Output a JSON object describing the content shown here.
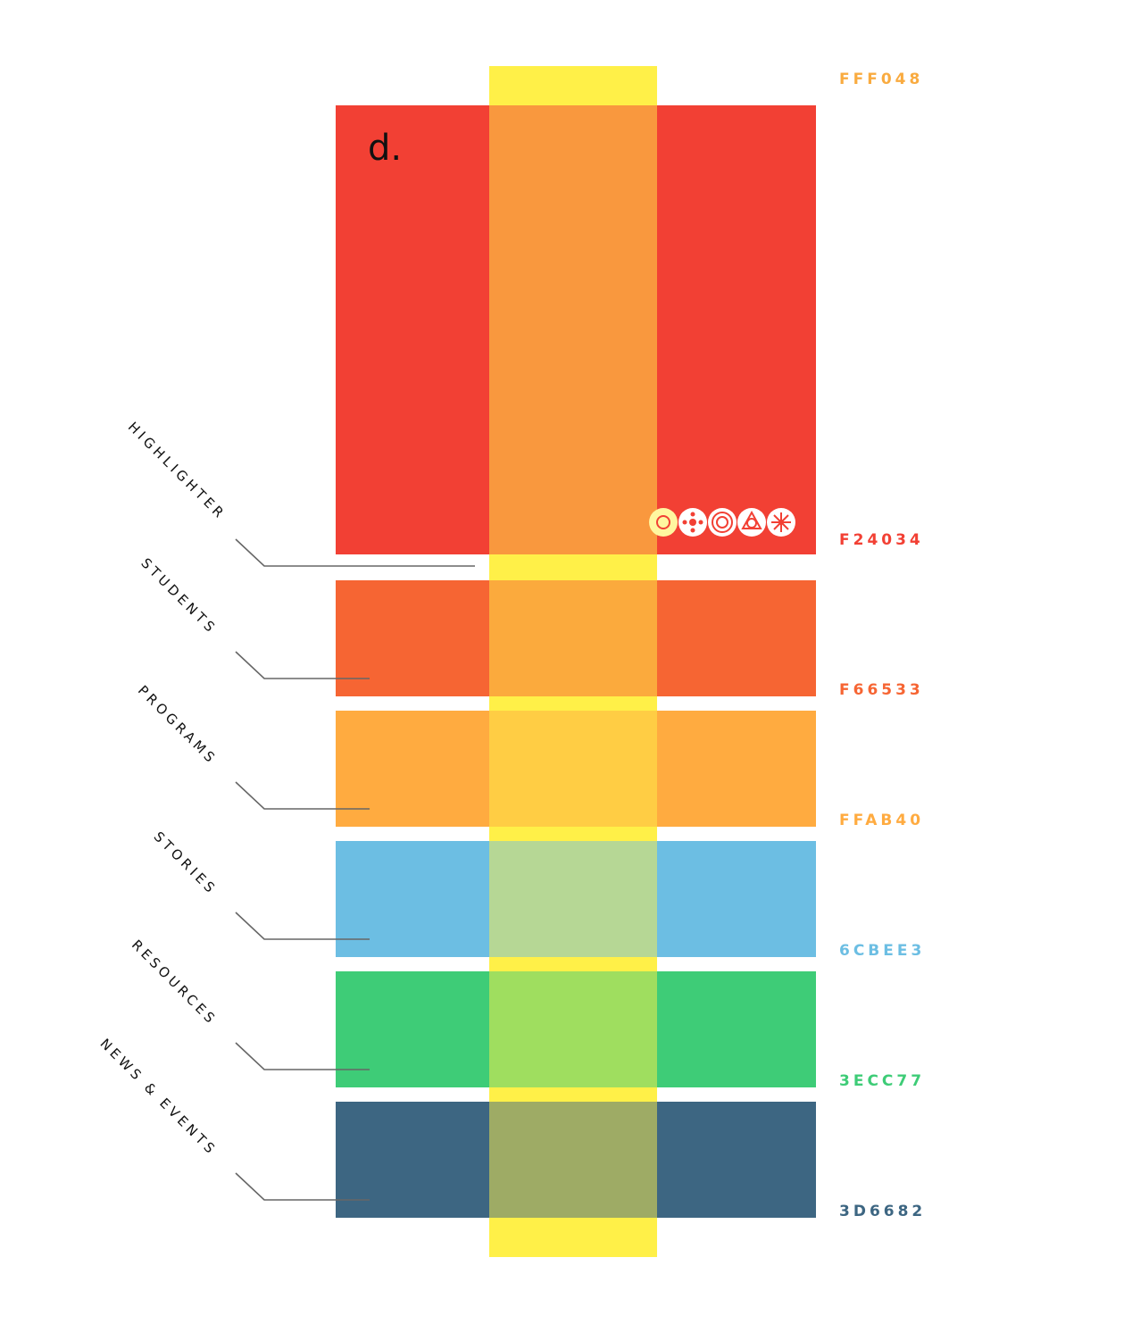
{
  "logo": "d.",
  "highlighter": {
    "label": "HIGHLIGHTER",
    "hex": "FFF048"
  },
  "base_hex": "F24034",
  "sections": [
    {
      "label": "STUDENTS",
      "hex": "F66533"
    },
    {
      "label": "PROGRAMS",
      "hex": "FFAB40"
    },
    {
      "label": "STORIES",
      "hex": "6CBEE3"
    },
    {
      "label": "RESOURCES",
      "hex": "3ECC77"
    },
    {
      "label": "NEWS & EVENTS",
      "hex": "3D6682"
    }
  ]
}
